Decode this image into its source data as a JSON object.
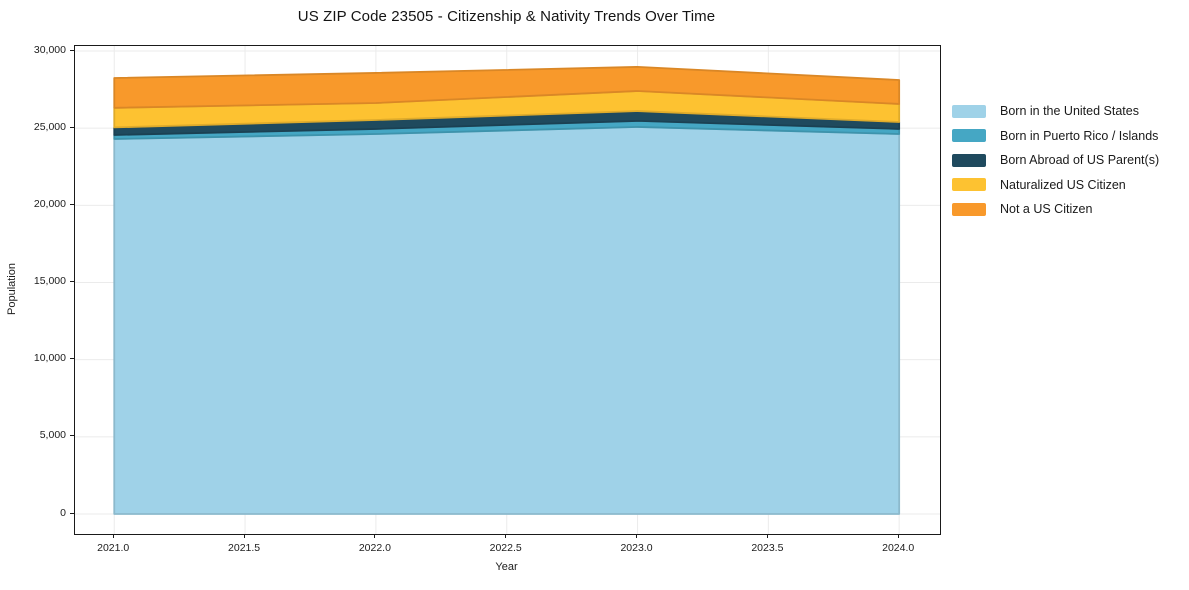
{
  "chart_data": {
    "type": "area",
    "stacked": true,
    "title": "US ZIP Code 23505 - Citizenship & Nativity Trends Over Time",
    "xlabel": "Year",
    "ylabel": "Population",
    "x": [
      2021,
      2022,
      2023,
      2024
    ],
    "series": [
      {
        "name": "Born in the United States",
        "color": "#9FD2E8",
        "values": [
          24300,
          24620,
          25080,
          24620
        ]
      },
      {
        "name": "Born in Puerto Rico / Islands",
        "color": "#45A7C4",
        "values": [
          260,
          330,
          390,
          330
        ]
      },
      {
        "name": "Born Abroad of US Parent(s)",
        "color": "#1F4A5E",
        "values": [
          490,
          580,
          640,
          450
        ]
      },
      {
        "name": "Naturalized US Citizen",
        "color": "#FDC231",
        "values": [
          1270,
          1100,
          1300,
          1170
        ]
      },
      {
        "name": "Not a US Citizen",
        "color": "#F8992B",
        "values": [
          1930,
          1950,
          1560,
          1550
        ]
      }
    ],
    "xlim": [
      2020.85,
      2024.156
    ],
    "ylim": [
      -1296,
      30324
    ],
    "xticks": {
      "values": [
        2021.0,
        2021.5,
        2022.0,
        2022.5,
        2023.0,
        2023.5,
        2024.0
      ],
      "labels": [
        "2021.0",
        "2021.5",
        "2022.0",
        "2022.5",
        "2023.0",
        "2023.5",
        "2024.0"
      ]
    },
    "yticks": {
      "values": [
        0,
        5000,
        10000,
        15000,
        20000,
        25000,
        30000
      ],
      "labels": [
        "0",
        "5,000",
        "10,000",
        "15,000",
        "20,000",
        "25,000",
        "30,000"
      ]
    },
    "grid": true,
    "grid_color": "#ebebeb",
    "legend_position": "right-outside"
  }
}
